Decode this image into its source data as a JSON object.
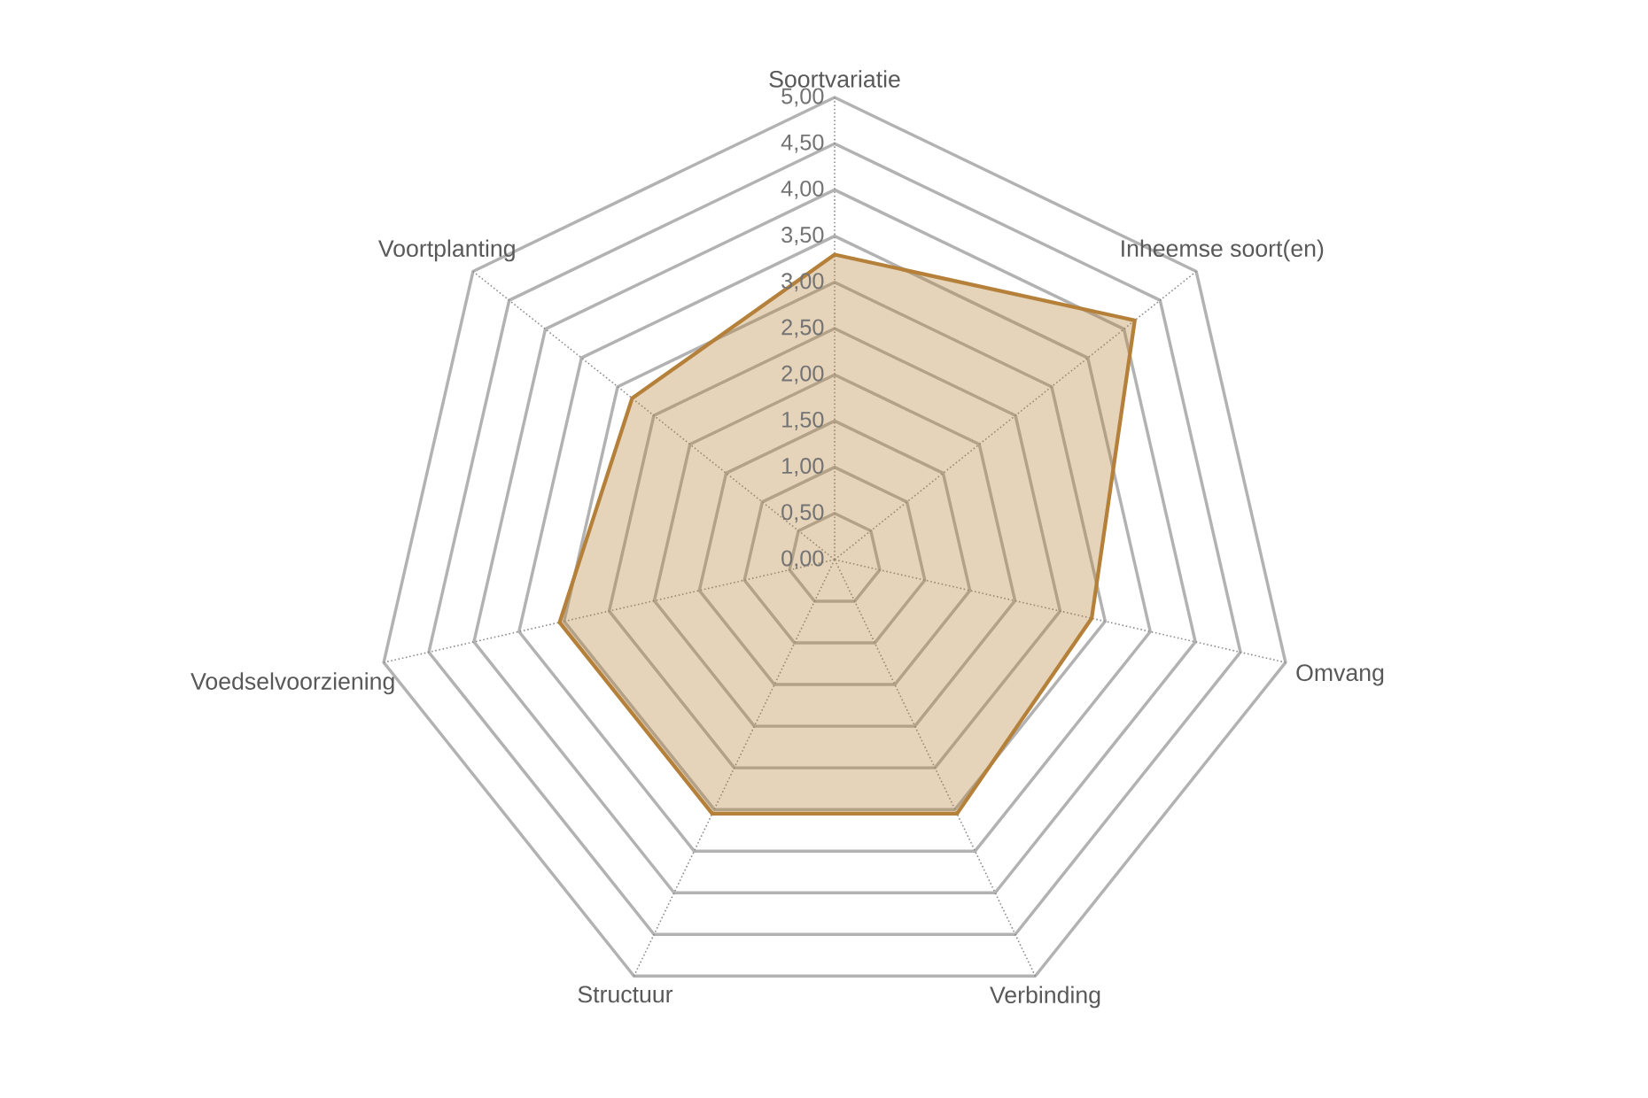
{
  "chart_data": {
    "type": "radar",
    "categories": [
      "Soortvariatie",
      "Inheemse soort(en)",
      "Omvang",
      "Verbinding",
      "Structuur",
      "Voedselvoorziening",
      "Voortplanting"
    ],
    "series": [
      {
        "color": "#b5813a",
        "values": [
          3.3,
          4.15,
          2.85,
          3.05,
          3.05,
          3.05,
          2.8
        ]
      }
    ],
    "ylim": [
      0,
      5
    ],
    "yticks": [
      {
        "value": 0,
        "label": "0,00"
      },
      {
        "value": 0.5,
        "label": "0,50"
      },
      {
        "value": 1,
        "label": "1,00"
      },
      {
        "value": 1.5,
        "label": "1,50"
      },
      {
        "value": 2,
        "label": "2,00"
      },
      {
        "value": 2.5,
        "label": "2,50"
      },
      {
        "value": 3,
        "label": "3,00"
      },
      {
        "value": 3.5,
        "label": "3,50"
      },
      {
        "value": 4,
        "label": "4,00"
      },
      {
        "value": 4.5,
        "label": "4,50"
      },
      {
        "value": 5,
        "label": "5,00"
      }
    ],
    "grid": true
  }
}
